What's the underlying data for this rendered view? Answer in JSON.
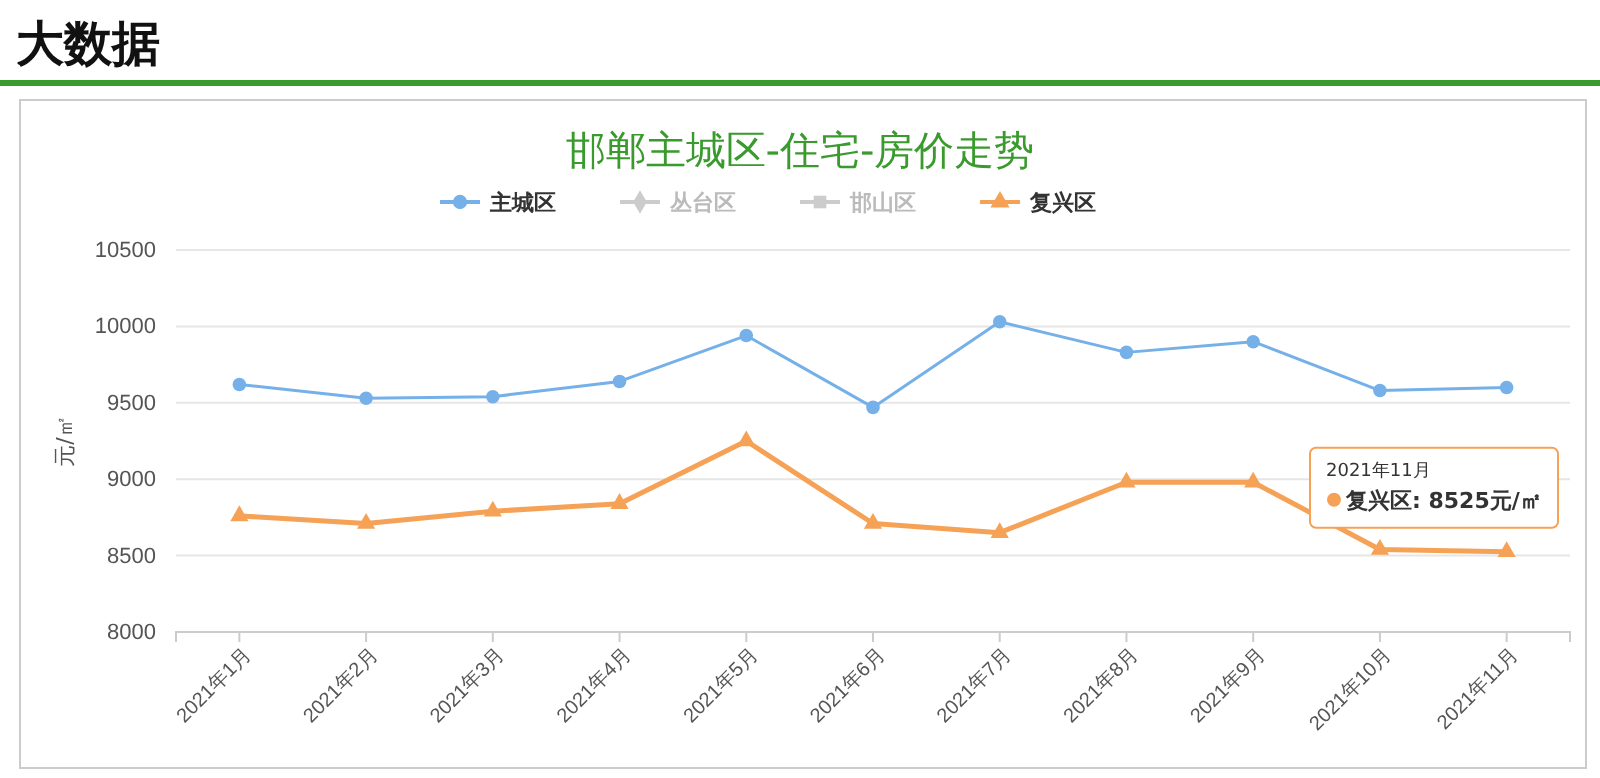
{
  "chart_data": {
    "type": "line",
    "title": "邯郸主城区-住宅-房价走势",
    "ylabel": "元/㎡",
    "annotations": [
      "大数据",
      "2021年11月",
      "复兴区: 8525元/㎡"
    ],
    "categories": [
      "2021年1月",
      "2021年2月",
      "2021年3月",
      "2021年4月",
      "2021年5月",
      "2021年6月",
      "2021年7月",
      "2021年8月",
      "2021年9月",
      "2021年10月",
      "2021年11月"
    ],
    "series": [
      {
        "name": "主城区",
        "color": "#75b0e8",
        "marker": "circle",
        "values": [
          9620,
          9530,
          9540,
          9640,
          9940,
          9470,
          10030,
          9830,
          9900,
          9580,
          9600
        ]
      },
      {
        "name": "丛台区",
        "color": "#cccccc",
        "marker": "diamond",
        "values": [
          null,
          null,
          null,
          null,
          null,
          null,
          null,
          null,
          null,
          null,
          null
        ]
      },
      {
        "name": "邯山区",
        "color": "#cccccc",
        "marker": "square",
        "values": [
          null,
          null,
          null,
          null,
          null,
          null,
          null,
          null,
          null,
          null,
          null
        ]
      },
      {
        "name": "复兴区",
        "color": "#f5a257",
        "marker": "triangle",
        "values": [
          8760,
          8710,
          8790,
          8840,
          9250,
          8710,
          8650,
          8980,
          8980,
          8540,
          8525
        ]
      }
    ],
    "ylim": [
      8000,
      10500
    ],
    "yticks": [
      8000,
      8500,
      9000,
      9500,
      10000,
      10500
    ],
    "grid": "y",
    "legend": "top"
  }
}
